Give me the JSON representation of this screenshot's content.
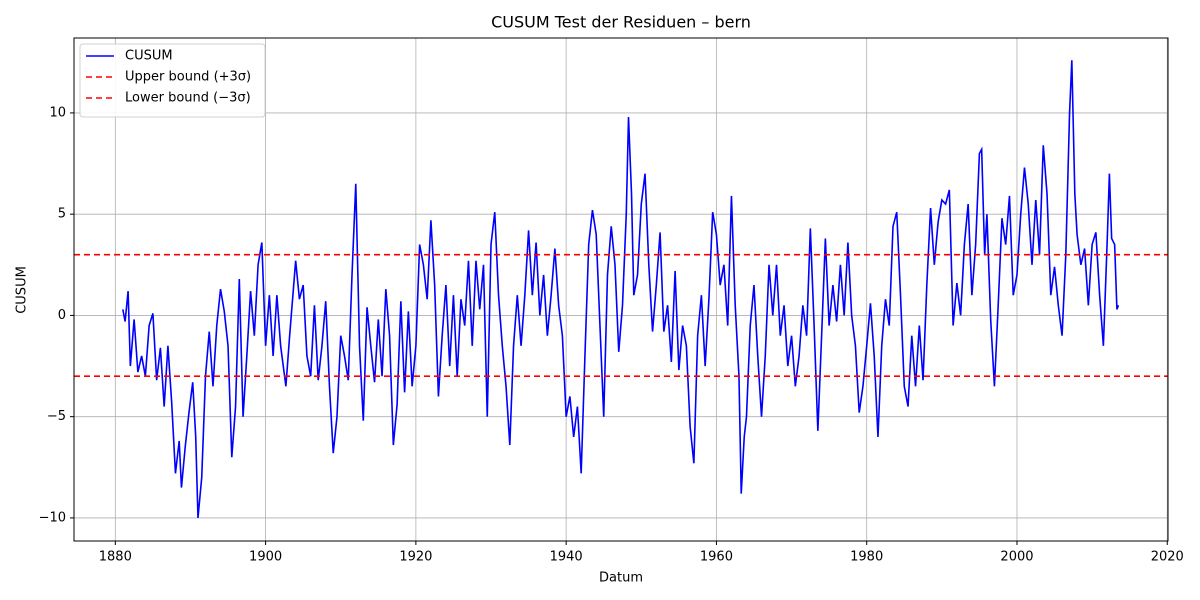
{
  "chart_data": {
    "type": "line",
    "title": "CUSUM Test der Residuen – bern",
    "x_label": "Datum",
    "y_label": "CUSUM",
    "xlim": [
      1874.5,
      2020.1
    ],
    "ylim": [
      -11.14,
      13.7
    ],
    "xticks": [
      1880,
      1900,
      1920,
      1940,
      1960,
      1980,
      2000,
      2020
    ],
    "yticks": [
      {
        "value": -10,
        "label": "−10"
      },
      {
        "value": -5,
        "label": "−5"
      },
      0,
      5,
      10
    ],
    "grid": true,
    "legend": "upper left",
    "x": [
      1881.0,
      1881.3,
      1881.7,
      1882.0,
      1882.5,
      1883.0,
      1883.5,
      1884.0,
      1884.5,
      1885.0,
      1885.5,
      1886.0,
      1886.5,
      1887.0,
      1887.5,
      1888.0,
      1888.5,
      1888.8,
      1889.3,
      1889.8,
      1890.3,
      1890.7,
      1891.0,
      1891.5,
      1892.0,
      1892.5,
      1893.0,
      1893.5,
      1894.0,
      1894.5,
      1895.0,
      1895.5,
      1896.0,
      1896.5,
      1897.0,
      1897.5,
      1898.0,
      1898.5,
      1899.0,
      1899.5,
      1900.0,
      1900.5,
      1901.0,
      1901.5,
      1902.0,
      1902.7,
      1903.2,
      1904.0,
      1904.5,
      1905.0,
      1905.5,
      1906.0,
      1906.5,
      1907.0,
      1907.5,
      1908.0,
      1908.5,
      1909.0,
      1909.5,
      1910.0,
      1910.5,
      1911.0,
      1911.5,
      1912.0,
      1912.5,
      1913.0,
      1913.5,
      1914.0,
      1914.5,
      1915.0,
      1915.5,
      1916.0,
      1916.5,
      1917.0,
      1917.5,
      1918.0,
      1918.5,
      1919.0,
      1919.5,
      1920.0,
      1920.5,
      1921.0,
      1921.5,
      1922.0,
      1922.5,
      1923.0,
      1923.5,
      1924.0,
      1924.5,
      1925.0,
      1925.5,
      1926.0,
      1926.5,
      1927.0,
      1927.5,
      1928.0,
      1928.5,
      1929.0,
      1929.5,
      1930.0,
      1930.5,
      1931.0,
      1931.5,
      1932.0,
      1932.5,
      1933.0,
      1933.5,
      1934.0,
      1934.5,
      1935.0,
      1935.5,
      1936.0,
      1936.5,
      1937.0,
      1937.5,
      1938.0,
      1938.5,
      1939.0,
      1939.5,
      1940.0,
      1940.5,
      1941.0,
      1941.5,
      1942.0,
      1942.5,
      1943.0,
      1943.5,
      1944.0,
      1944.5,
      1945.0,
      1945.5,
      1946.0,
      1946.5,
      1947.0,
      1947.5,
      1948.0,
      1948.3,
      1948.7,
      1949.0,
      1949.5,
      1950.0,
      1950.5,
      1951.0,
      1951.5,
      1952.0,
      1952.5,
      1953.0,
      1953.5,
      1954.0,
      1954.5,
      1955.0,
      1955.5,
      1956.0,
      1956.5,
      1957.0,
      1957.5,
      1958.0,
      1958.5,
      1959.0,
      1959.5,
      1960.0,
      1960.5,
      1961.0,
      1961.5,
      1962.0,
      1962.5,
      1963.0,
      1963.3,
      1963.7,
      1964.0,
      1964.5,
      1965.0,
      1965.5,
      1966.0,
      1966.5,
      1967.0,
      1967.5,
      1968.0,
      1968.5,
      1969.0,
      1969.5,
      1970.0,
      1970.5,
      1971.0,
      1971.5,
      1972.0,
      1972.5,
      1973.0,
      1973.5,
      1974.0,
      1974.5,
      1975.0,
      1975.5,
      1976.0,
      1976.5,
      1977.0,
      1977.5,
      1978.0,
      1978.5,
      1979.0,
      1979.5,
      1980.0,
      1980.5,
      1981.0,
      1981.5,
      1982.0,
      1982.5,
      1983.0,
      1983.5,
      1984.0,
      1984.5,
      1985.0,
      1985.5,
      1986.0,
      1986.5,
      1987.0,
      1987.5,
      1988.0,
      1988.5,
      1989.0,
      1989.5,
      1990.0,
      1990.5,
      1991.0,
      1991.5,
      1992.0,
      1992.5,
      1993.0,
      1993.5,
      1994.0,
      1994.5,
      1995.0,
      1995.3,
      1995.7,
      1996.0,
      1996.5,
      1997.0,
      1997.5,
      1998.0,
      1998.5,
      1999.0,
      1999.5,
      2000.0,
      2000.5,
      2001.0,
      2001.5,
      2002.0,
      2002.5,
      2003.0,
      2003.5,
      2004.0,
      2004.5,
      2005.0,
      2005.5,
      2006.0,
      2006.5,
      2007.0,
      2007.3,
      2007.7,
      2008.0,
      2008.5,
      2009.0,
      2009.5,
      2010.0,
      2010.5,
      2011.0,
      2011.5,
      2012.0,
      2012.3,
      2012.6,
      2013.0,
      2013.3,
      2013.5
    ],
    "series": [
      {
        "name": "CUSUM",
        "color": "#0000ff",
        "values": [
          0.3,
          -0.3,
          1.2,
          -2.5,
          -0.2,
          -2.8,
          -2.0,
          -3.0,
          -0.5,
          0.1,
          -3.2,
          -1.6,
          -4.5,
          -1.5,
          -4.3,
          -7.8,
          -6.2,
          -8.5,
          -6.5,
          -4.8,
          -3.3,
          -6.0,
          -10.0,
          -8.0,
          -3.0,
          -0.8,
          -3.5,
          -0.5,
          1.3,
          0.2,
          -1.5,
          -7.0,
          -4.5,
          1.8,
          -5.0,
          -2.0,
          1.2,
          -1.0,
          2.5,
          3.6,
          -1.5,
          1.0,
          -2.0,
          1.0,
          -1.5,
          -3.5,
          -1.0,
          2.7,
          0.8,
          1.5,
          -2.0,
          -3.0,
          0.5,
          -3.2,
          -1.5,
          0.7,
          -3.5,
          -6.8,
          -5.0,
          -1.0,
          -2.0,
          -3.2,
          2.0,
          6.5,
          -1.5,
          -5.2,
          0.4,
          -1.5,
          -3.3,
          -0.2,
          -3.0,
          1.3,
          -1.0,
          -6.4,
          -4.4,
          0.7,
          -3.8,
          0.2,
          -3.5,
          -1.5,
          3.5,
          2.5,
          0.8,
          4.7,
          1.5,
          -4.0,
          -1.0,
          1.5,
          -2.5,
          1.0,
          -3.0,
          0.8,
          -0.5,
          2.7,
          -1.5,
          2.7,
          0.3,
          2.5,
          -5.0,
          3.5,
          5.1,
          1.0,
          -1.5,
          -3.5,
          -6.4,
          -1.5,
          1.0,
          -1.5,
          1.0,
          4.2,
          1.0,
          3.6,
          0.0,
          2.0,
          -1.0,
          1.0,
          3.3,
          0.5,
          -1.0,
          -5.0,
          -4.0,
          -6.0,
          -4.5,
          -7.8,
          -2.0,
          3.5,
          5.2,
          4.0,
          -0.5,
          -5.0,
          2.0,
          4.4,
          2.5,
          -1.8,
          0.5,
          5.0,
          9.8,
          6.0,
          1.0,
          2.0,
          5.5,
          7.0,
          2.5,
          -0.8,
          1.5,
          4.1,
          -0.8,
          0.5,
          -2.3,
          2.2,
          -2.7,
          -0.5,
          -1.5,
          -5.5,
          -7.3,
          -1.0,
          1.0,
          -2.5,
          0.8,
          5.1,
          4.0,
          1.5,
          2.5,
          -0.5,
          5.9,
          0.5,
          -3.0,
          -8.8,
          -6.0,
          -5.0,
          -0.5,
          1.5,
          -2.0,
          -5.0,
          -2.0,
          2.5,
          0.0,
          2.5,
          -1.0,
          0.5,
          -2.5,
          -1.0,
          -3.5,
          -2.0,
          0.5,
          -1.0,
          4.3,
          -0.5,
          -5.7,
          -1.0,
          3.8,
          -0.5,
          1.5,
          -0.3,
          2.5,
          0.0,
          3.6,
          0.0,
          -1.5,
          -4.8,
          -3.5,
          -1.5,
          0.6,
          -2.0,
          -6.0,
          -1.5,
          0.8,
          -0.5,
          4.4,
          5.1,
          1.0,
          -3.5,
          -4.5,
          -1.0,
          -3.5,
          -0.5,
          -3.2,
          1.5,
          5.3,
          2.5,
          4.6,
          5.7,
          5.5,
          6.2,
          -0.5,
          1.6,
          0.0,
          3.5,
          5.5,
          1.0,
          3.5,
          8.0,
          8.2,
          3.0,
          5.0,
          -0.2,
          -3.5,
          0.5,
          4.8,
          3.5,
          5.9,
          1.0,
          2.0,
          5.0,
          7.3,
          5.5,
          2.5,
          5.7,
          3.0,
          8.4,
          6.0,
          1.0,
          2.4,
          0.5,
          -1.0,
          3.0,
          10.0,
          12.6,
          6.0,
          4.0,
          2.5,
          3.3,
          0.5,
          3.5,
          4.1,
          1.0,
          -1.5,
          3.6,
          7.0,
          3.8,
          3.5,
          0.3,
          0.5
        ]
      }
    ],
    "reference_lines": [
      {
        "name": "Upper bound (+3σ)",
        "color": "#ff0000",
        "value": 3
      },
      {
        "name": "Lower bound (−3σ)",
        "color": "#ff0000",
        "value": -3
      }
    ]
  }
}
